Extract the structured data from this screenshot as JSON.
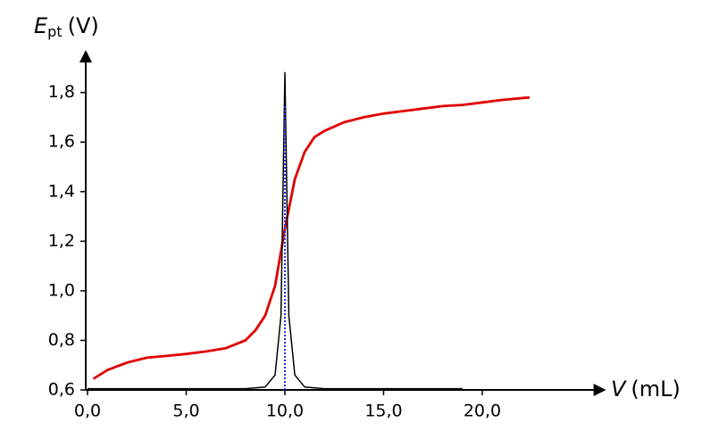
{
  "chart_data": {
    "type": "line",
    "ylabel": {
      "symbol": "E",
      "subscript": "pt",
      "unit": "(V)"
    },
    "xlabel": {
      "symbol": "V",
      "unit": "(mL)"
    },
    "xlim": [
      0,
      26
    ],
    "ylim": [
      0.6,
      1.95
    ],
    "xticks": [
      {
        "value": 0,
        "label": "0,0"
      },
      {
        "value": 5,
        "label": "5,0"
      },
      {
        "value": 10,
        "label": "10,0"
      },
      {
        "value": 15,
        "label": "15,0"
      },
      {
        "value": 20,
        "label": "20,0"
      }
    ],
    "yticks": [
      {
        "value": 0.6,
        "label": "0,6"
      },
      {
        "value": 0.8,
        "label": "0,8"
      },
      {
        "value": 1.0,
        "label": "1,0"
      },
      {
        "value": 1.2,
        "label": "1,2"
      },
      {
        "value": 1.4,
        "label": "1,4"
      },
      {
        "value": 1.6,
        "label": "1,6"
      },
      {
        "value": 1.8,
        "label": "1,8"
      }
    ],
    "grid": false,
    "series": [
      {
        "color": "#e00000",
        "x": [
          0.3,
          1,
          2,
          3,
          4,
          5,
          6,
          7,
          8,
          8.5,
          9,
          9.5,
          10,
          10.5,
          11,
          11.5,
          12,
          13,
          14,
          15,
          16,
          17,
          18,
          19,
          20,
          21,
          22.4
        ],
        "values": [
          0.645,
          0.68,
          0.71,
          0.73,
          0.737,
          0.745,
          0.755,
          0.768,
          0.8,
          0.84,
          0.9,
          1.02,
          1.25,
          1.45,
          1.56,
          1.62,
          1.645,
          1.68,
          1.7,
          1.715,
          1.725,
          1.735,
          1.745,
          1.75,
          1.76,
          1.77,
          1.78
        ]
      },
      {
        "color": "#000000",
        "x": [
          0,
          8,
          9,
          9.5,
          9.8,
          10,
          10.2,
          10.5,
          11,
          12,
          19
        ],
        "values": [
          0.605,
          0.605,
          0.612,
          0.66,
          0.9,
          1.88,
          0.9,
          0.66,
          0.612,
          0.605,
          0.605
        ]
      }
    ],
    "vlines": [
      {
        "x": 10,
        "y": [
          0.6,
          1.75
        ],
        "color": "#2030e0"
      }
    ]
  }
}
